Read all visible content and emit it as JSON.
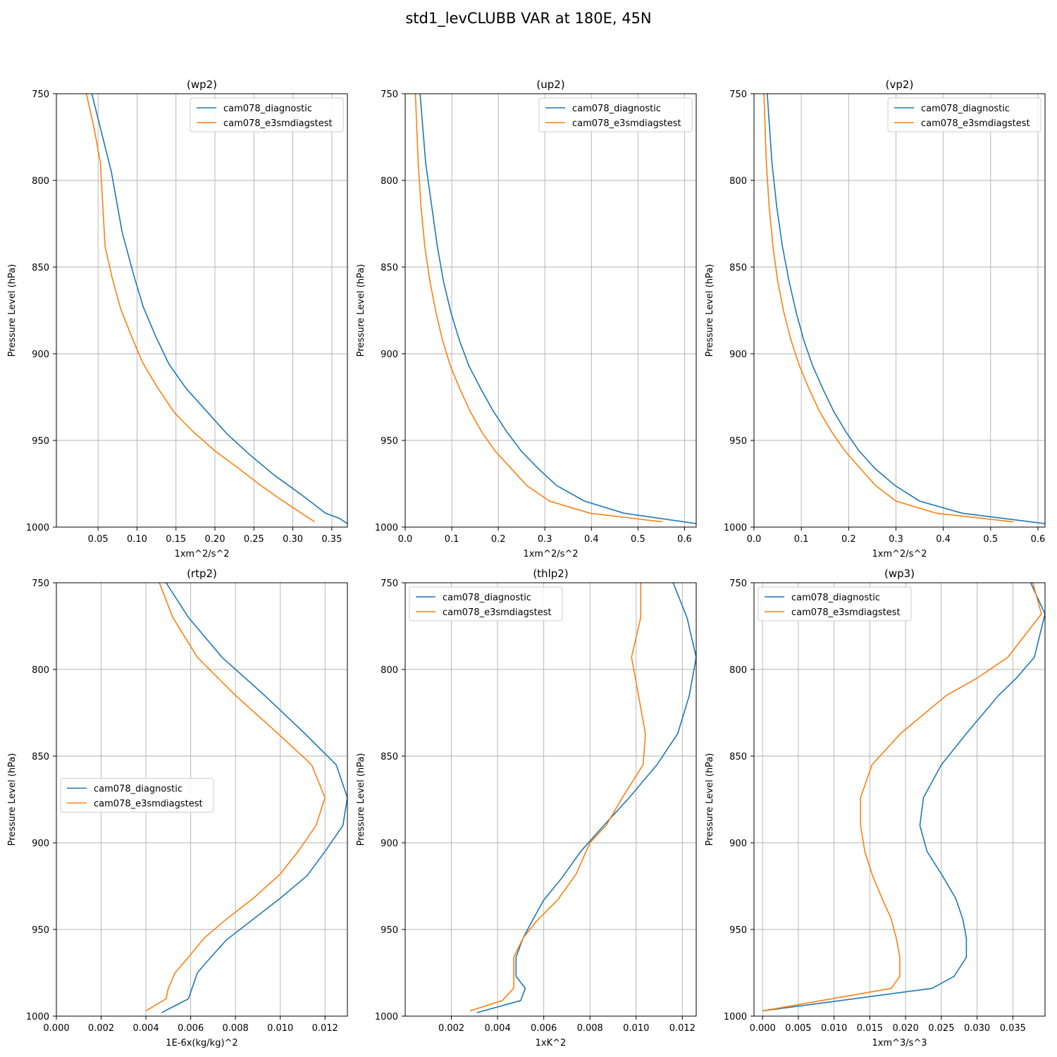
{
  "figure": {
    "suptitle": "std1_levCLUBB VAR at 180E, 45N",
    "colors": {
      "series1": "#1f77b4",
      "series2": "#ff7f0e",
      "grid": "#b0b0b0"
    }
  },
  "chart_data": [
    {
      "type": "line",
      "title": "(wp2)",
      "xlabel": "1xm^2/s^2",
      "ylabel": "Pressure Level (hPa)",
      "xlim": [
        -0.0035,
        0.37
      ],
      "ylim": [
        1000,
        750
      ],
      "xticks": [
        0.05,
        0.1,
        0.15,
        0.2,
        0.25,
        0.3,
        0.35
      ],
      "xtick_labels": [
        "0.05",
        "0.10",
        "0.15",
        "0.20",
        "0.25",
        "0.30",
        "0.35"
      ],
      "yticks": [
        750,
        800,
        850,
        900,
        950,
        1000
      ],
      "ytick_labels": [
        "750",
        "800",
        "850",
        "900",
        "950",
        "1000"
      ],
      "grid": true,
      "legend_loc": "upper-right",
      "series": [
        {
          "name": "cam078_diagnostic",
          "x": [
            0.042,
            0.067,
            0.081,
            0.096,
            0.108,
            0.124,
            0.141,
            0.163,
            0.189,
            0.215,
            0.244,
            0.276,
            0.31,
            0.342,
            0.36,
            0.37
          ],
          "y": [
            750,
            795,
            830,
            855,
            873,
            890,
            906,
            920,
            933,
            946,
            958,
            970,
            981,
            992,
            995,
            998
          ]
        },
        {
          "name": "cam078_e3smdiagstest",
          "x": [
            0.035,
            0.045,
            0.053,
            0.059,
            0.068,
            0.079,
            0.093,
            0.107,
            0.127,
            0.148,
            0.172,
            0.2,
            0.23,
            0.256,
            0.284,
            0.311,
            0.328
          ],
          "y": [
            750,
            770,
            790,
            838,
            856,
            874,
            890,
            905,
            920,
            934,
            945,
            956,
            966,
            975,
            984,
            992,
            997
          ]
        }
      ]
    },
    {
      "type": "line",
      "title": "(up2)",
      "xlabel": "1xm^2/s^2",
      "ylabel": "Pressure Level (hPa)",
      "xlim": [
        0.0,
        0.625
      ],
      "ylim": [
        1000,
        750
      ],
      "xticks": [
        0.0,
        0.1,
        0.2,
        0.3,
        0.4,
        0.5,
        0.6
      ],
      "xtick_labels": [
        "0.0",
        "0.1",
        "0.2",
        "0.3",
        "0.4",
        "0.5",
        "0.6"
      ],
      "yticks": [
        750,
        800,
        850,
        900,
        950,
        1000
      ],
      "ytick_labels": [
        "750",
        "800",
        "850",
        "900",
        "950",
        "1000"
      ],
      "grid": true,
      "legend_loc": "upper-right",
      "series": [
        {
          "name": "cam078_diagnostic",
          "x": [
            0.032,
            0.044,
            0.057,
            0.069,
            0.082,
            0.098,
            0.116,
            0.137,
            0.162,
            0.189,
            0.218,
            0.249,
            0.285,
            0.325,
            0.385,
            0.47,
            0.625
          ],
          "y": [
            750,
            790,
            815,
            838,
            858,
            876,
            892,
            907,
            920,
            933,
            945,
            956,
            966,
            976,
            985,
            992,
            998
          ]
        },
        {
          "name": "cam078_e3smdiagstest",
          "x": [
            0.022,
            0.028,
            0.034,
            0.042,
            0.053,
            0.066,
            0.08,
            0.097,
            0.117,
            0.139,
            0.164,
            0.193,
            0.227,
            0.261,
            0.31,
            0.397,
            0.552
          ],
          "y": [
            750,
            790,
            815,
            838,
            858,
            876,
            892,
            907,
            920,
            933,
            945,
            956,
            966,
            976,
            985,
            992,
            997
          ]
        }
      ]
    },
    {
      "type": "line",
      "title": "(vp2)",
      "xlabel": "1xm^2/s^2",
      "ylabel": "Pressure Level (hPa)",
      "xlim": [
        0.0,
        0.615
      ],
      "ylim": [
        1000,
        750
      ],
      "xticks": [
        0.0,
        0.1,
        0.2,
        0.3,
        0.4,
        0.5,
        0.6
      ],
      "xtick_labels": [
        "0.0",
        "0.1",
        "0.2",
        "0.3",
        "0.4",
        "0.5",
        "0.6"
      ],
      "yticks": [
        750,
        800,
        850,
        900,
        950,
        1000
      ],
      "ytick_labels": [
        "750",
        "800",
        "850",
        "900",
        "950",
        "1000"
      ],
      "grid": true,
      "legend_loc": "upper-right",
      "series": [
        {
          "name": "cam078_diagnostic",
          "x": [
            0.028,
            0.038,
            0.048,
            0.06,
            0.074,
            0.089,
            0.105,
            0.124,
            0.145,
            0.168,
            0.194,
            0.222,
            0.255,
            0.298,
            0.35,
            0.44,
            0.615
          ],
          "y": [
            750,
            790,
            815,
            838,
            858,
            876,
            892,
            907,
            920,
            933,
            945,
            956,
            966,
            976,
            985,
            992,
            998
          ]
        },
        {
          "name": "cam078_e3smdiagstest",
          "x": [
            0.021,
            0.026,
            0.032,
            0.04,
            0.05,
            0.063,
            0.078,
            0.096,
            0.116,
            0.138,
            0.164,
            0.192,
            0.224,
            0.257,
            0.3,
            0.385,
            0.548
          ],
          "y": [
            750,
            790,
            815,
            838,
            858,
            876,
            892,
            907,
            920,
            933,
            945,
            956,
            966,
            976,
            985,
            992,
            997
          ]
        }
      ]
    },
    {
      "type": "line",
      "title": "(rtp2)",
      "xlabel": "1E-6x(kg/kg)^2",
      "ylabel": "Pressure Level (hPa)",
      "xlim": [
        0.0,
        0.013
      ],
      "ylim": [
        1000,
        750
      ],
      "xticks": [
        0.0,
        0.002,
        0.004,
        0.006,
        0.008,
        0.01,
        0.012
      ],
      "xtick_labels": [
        "0.000",
        "0.002",
        "0.004",
        "0.006",
        "0.008",
        "0.010",
        "0.012"
      ],
      "yticks": [
        750,
        800,
        850,
        900,
        950,
        1000
      ],
      "ytick_labels": [
        "750",
        "800",
        "850",
        "900",
        "950",
        "1000"
      ],
      "grid": true,
      "legend_loc": "center-left",
      "series": [
        {
          "name": "cam078_diagnostic",
          "x": [
            0.0049,
            0.0059,
            0.0074,
            0.0093,
            0.0111,
            0.0125,
            0.013,
            0.0128,
            0.012,
            0.0112,
            0.01,
            0.0087,
            0.0076,
            0.0069,
            0.0063,
            0.0059,
            0.0047
          ],
          "y": [
            750,
            770,
            793,
            815,
            837,
            855,
            874,
            890,
            905,
            919,
            932,
            945,
            956,
            966,
            975,
            990,
            998
          ]
        },
        {
          "name": "cam078_e3smdiagstest",
          "x": [
            0.0046,
            0.0052,
            0.0063,
            0.008,
            0.0099,
            0.0114,
            0.012,
            0.0116,
            0.0108,
            0.01,
            0.0088,
            0.0076,
            0.0066,
            0.0059,
            0.0053,
            0.005,
            0.0049,
            0.004
          ],
          "y": [
            750,
            770,
            793,
            815,
            837,
            855,
            874,
            890,
            905,
            918,
            932,
            944,
            955,
            966,
            975,
            984,
            990,
            997
          ]
        }
      ]
    },
    {
      "type": "line",
      "title": "(thlp2)",
      "xlabel": "1xK^2",
      "ylabel": "Pressure Level (hPa)",
      "xlim": [
        0.0,
        0.0126
      ],
      "ylim": [
        1000,
        750
      ],
      "xticks": [
        0.002,
        0.004,
        0.006,
        0.008,
        0.01,
        0.012
      ],
      "xtick_labels": [
        "0.002",
        "0.004",
        "0.006",
        "0.008",
        "0.010",
        "0.012"
      ],
      "yticks": [
        750,
        800,
        850,
        900,
        950,
        1000
      ],
      "ytick_labels": [
        "750",
        "800",
        "850",
        "900",
        "950",
        "1000"
      ],
      "grid": true,
      "legend_loc": "upper-left",
      "series": [
        {
          "name": "cam078_diagnostic",
          "x": [
            0.0116,
            0.0122,
            0.0126,
            0.0123,
            0.0118,
            0.0109,
            0.0097,
            0.0086,
            0.0076,
            0.0068,
            0.006,
            0.0055,
            0.0051,
            0.0048,
            0.0048,
            0.0052,
            0.005,
            0.0031
          ],
          "y": [
            750,
            770,
            793,
            815,
            837,
            855,
            874,
            890,
            905,
            920,
            933,
            945,
            955,
            966,
            977,
            984,
            991,
            998
          ]
        },
        {
          "name": "cam078_e3smdiagstest",
          "x": [
            0.0102,
            0.0102,
            0.0098,
            0.0101,
            0.0104,
            0.0103,
            0.0094,
            0.0087,
            0.008,
            0.0074,
            0.0066,
            0.0057,
            0.0051,
            0.0047,
            0.0047,
            0.0047,
            0.0042,
            0.0028
          ],
          "y": [
            750,
            770,
            793,
            815,
            837,
            855,
            874,
            890,
            900,
            918,
            933,
            945,
            955,
            966,
            977,
            984,
            991,
            997
          ]
        }
      ]
    },
    {
      "type": "line",
      "title": "(wp3)",
      "xlabel": "1xm^3/s^3",
      "ylabel": "Pressure Level (hPa)",
      "xlim": [
        -0.0012,
        0.0395
      ],
      "ylim": [
        1000,
        750
      ],
      "xticks": [
        0.0,
        0.005,
        0.01,
        0.015,
        0.02,
        0.025,
        0.03,
        0.035
      ],
      "xtick_labels": [
        "0.000",
        "0.005",
        "0.010",
        "0.015",
        "0.020",
        "0.025",
        "0.030",
        "0.035"
      ],
      "yticks": [
        750,
        800,
        850,
        900,
        950,
        1000
      ],
      "ytick_labels": [
        "750",
        "800",
        "850",
        "900",
        "950",
        "1000"
      ],
      "grid": true,
      "legend_loc": "upper-left",
      "series": [
        {
          "name": "cam078_diagnostic",
          "x": [
            0.0375,
            0.0395,
            0.038,
            0.0355,
            0.033,
            0.0285,
            0.025,
            0.0225,
            0.022,
            0.023,
            0.025,
            0.027,
            0.028,
            0.0285,
            0.0285,
            0.0268,
            0.0237,
            0.0
          ],
          "y": [
            750,
            768,
            793,
            805,
            815,
            837,
            855,
            874,
            890,
            905,
            918,
            932,
            944,
            955,
            966,
            977,
            984,
            997
          ]
        },
        {
          "name": "cam078_e3smdiagstest",
          "x": [
            0.0378,
            0.039,
            0.0343,
            0.03,
            0.0257,
            0.0193,
            0.0153,
            0.0137,
            0.0137,
            0.0143,
            0.0153,
            0.0167,
            0.018,
            0.0187,
            0.0192,
            0.0192,
            0.018,
            0.0
          ],
          "y": [
            750,
            768,
            793,
            805,
            815,
            837,
            855,
            874,
            890,
            905,
            918,
            932,
            944,
            955,
            966,
            977,
            984,
            997
          ]
        }
      ]
    }
  ]
}
